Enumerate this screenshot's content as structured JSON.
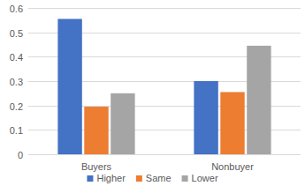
{
  "chart_data": {
    "type": "bar",
    "categories": [
      "Buyers",
      "Nonbuyer"
    ],
    "series": [
      {
        "name": "Higher",
        "color": "#4472c4",
        "values": [
          0.555,
          0.3
        ]
      },
      {
        "name": "Same",
        "color": "#ed7d31",
        "values": [
          0.195,
          0.255
        ]
      },
      {
        "name": "Lower",
        "color": "#a5a5a5",
        "values": [
          0.25,
          0.445
        ]
      }
    ],
    "ylim": [
      0,
      0.6
    ],
    "yticks": [
      0,
      0.1,
      0.2,
      0.3,
      0.4,
      0.5,
      0.6
    ],
    "grid": true,
    "legend": "bottom"
  }
}
